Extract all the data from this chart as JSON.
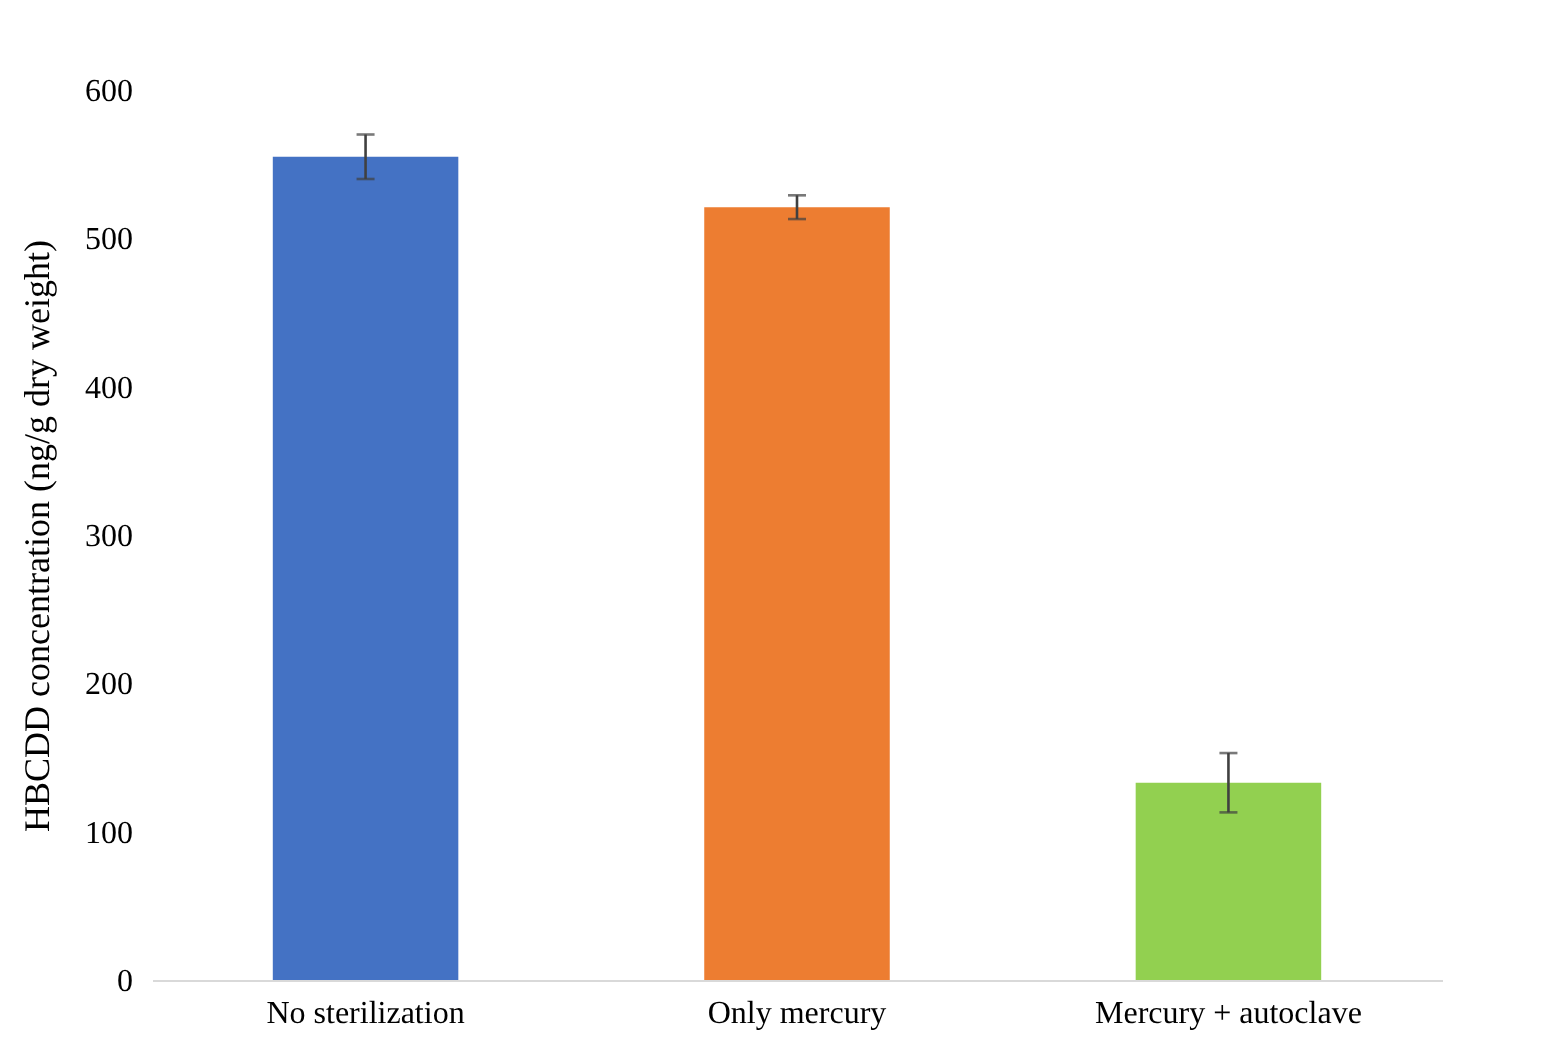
{
  "chart_data": {
    "type": "bar",
    "ylabel": "HBCDD concentration (ng/g dry weight)",
    "categories": [
      "No sterilization",
      "Only mercury",
      "Mercury + autoclave"
    ],
    "values": [
      555,
      521,
      133
    ],
    "colors": [
      "#4472c4",
      "#ed7d31",
      "#92d050"
    ],
    "errors": [
      15,
      8,
      20
    ],
    "ylim": [
      0,
      600
    ],
    "yticks": [
      0,
      100,
      200,
      300,
      400,
      500,
      600
    ],
    "grid": false
  }
}
